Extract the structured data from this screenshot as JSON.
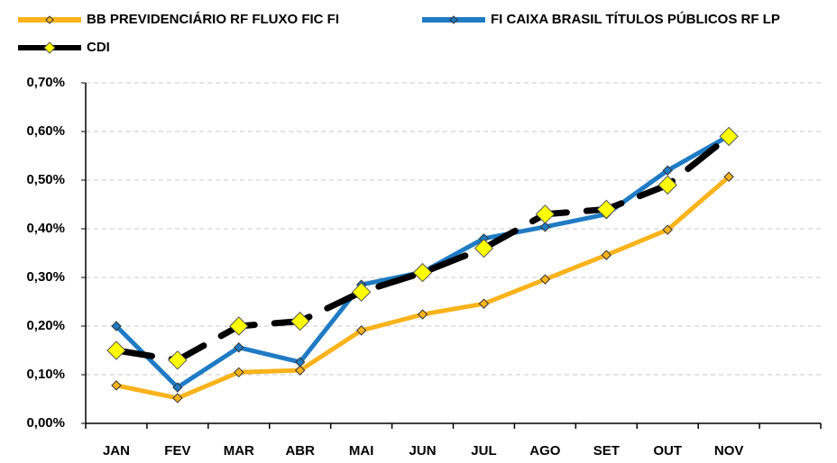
{
  "chart_data": {
    "type": "line",
    "categories": [
      "JAN",
      "FEV",
      "MAR",
      "ABR",
      "MAI",
      "JUN",
      "JUL",
      "AGO",
      "SET",
      "OUT",
      "NOV",
      null
    ],
    "series": [
      {
        "name": "BB PREVIDENCIÁRIO RF FLUXO FIC FI",
        "color": "#f9b31b",
        "marker_color": "#f9b31b",
        "values": [
          0.078,
          0.052,
          0.105,
          0.109,
          0.191,
          0.224,
          0.246,
          0.296,
          0.346,
          0.398,
          0.507,
          null
        ]
      },
      {
        "name": "FI CAIXA BRASIL TÍTULOS PÚBLICOS RF LP",
        "color": "#1f7bc3",
        "marker_color": "#1f7bc3",
        "values": [
          0.2,
          0.074,
          0.156,
          0.126,
          0.285,
          0.311,
          0.38,
          0.404,
          0.43,
          0.52,
          0.591,
          null
        ]
      },
      {
        "name": "CDI",
        "color": "#000000",
        "marker_color": "#ffff00",
        "line_style": "dashed",
        "values": [
          0.15,
          0.13,
          0.2,
          0.21,
          0.27,
          0.31,
          0.36,
          0.43,
          0.44,
          0.49,
          0.59,
          null
        ]
      }
    ],
    "ylim": [
      0,
      0.7
    ],
    "yticks": [
      {
        "value": 0,
        "label": "0,00%"
      },
      {
        "value": 0.1,
        "label": "0,10%"
      },
      {
        "value": 0.2,
        "label": "0,20%"
      },
      {
        "value": 0.3,
        "label": "0,30%"
      },
      {
        "value": 0.4,
        "label": "0,40%"
      },
      {
        "value": 0.5,
        "label": "0,50%"
      },
      {
        "value": 0.6,
        "label": "0,60%"
      },
      {
        "value": 0.7,
        "label": "0,70%"
      }
    ],
    "grid": true,
    "legend": "top"
  }
}
